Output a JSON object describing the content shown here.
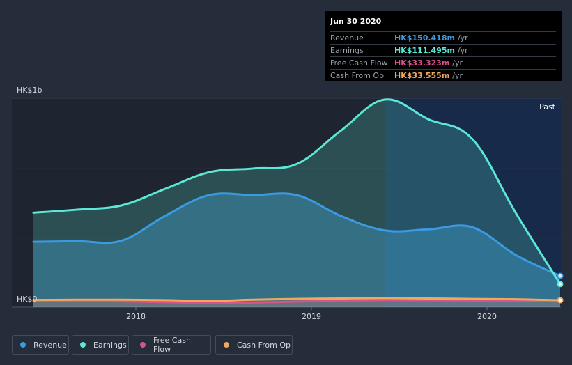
{
  "chart_data": {
    "type": "area",
    "y_axis": {
      "top_label": "HK$1b",
      "bottom_label": "HK$0",
      "ylim": [
        0,
        1000
      ]
    },
    "x_axis": {
      "ticks": [
        "2018",
        "2019",
        "2020"
      ],
      "range": [
        "2017-06",
        "2020-09"
      ]
    },
    "past_label": "Past",
    "x": [
      "2017-06",
      "2017-09",
      "2017-12",
      "2018-03",
      "2018-06",
      "2018-09",
      "2018-12",
      "2019-03",
      "2019-06",
      "2019-09",
      "2019-12",
      "2020-03",
      "2020-06"
    ],
    "series": [
      {
        "name": "Revenue",
        "color": "#3b9be2",
        "values": [
          315,
          318,
          320,
          440,
          540,
          540,
          540,
          440,
          370,
          375,
          385,
          250,
          150.418
        ]
      },
      {
        "name": "Earnings",
        "color": "#5be8d5",
        "values": [
          455,
          470,
          490,
          570,
          650,
          668,
          690,
          850,
          1000,
          905,
          810,
          450,
          111.495
        ]
      },
      {
        "name": "Free Cash Flow",
        "color": "#d9528a",
        "values": [
          28,
          29,
          28,
          24,
          20,
          22,
          27,
          31,
          34,
          33,
          32,
          31,
          33.323
        ]
      },
      {
        "name": "Cash From Op",
        "color": "#f0a95c",
        "values": [
          35,
          36,
          36,
          34,
          30,
          36,
          40,
          42,
          44,
          42,
          40,
          38,
          33.555
        ]
      }
    ]
  },
  "tooltip": {
    "date": "Jun 30 2020",
    "rows": [
      {
        "label": "Revenue",
        "value": "HK$150.418m",
        "unit": "/yr",
        "color": "#3b9be2"
      },
      {
        "label": "Earnings",
        "value": "HK$111.495m",
        "unit": "/yr",
        "color": "#5be8d5"
      },
      {
        "label": "Free Cash Flow",
        "value": "HK$33.323m",
        "unit": "/yr",
        "color": "#d9528a"
      },
      {
        "label": "Cash From Op",
        "value": "HK$33.555m",
        "unit": "/yr",
        "color": "#f0a95c"
      }
    ]
  },
  "legend": [
    {
      "label": "Revenue",
      "color": "#3b9be2"
    },
    {
      "label": "Earnings",
      "color": "#5be8d5"
    },
    {
      "label": "Free Cash Flow",
      "color": "#d9528a"
    },
    {
      "label": "Cash From Op",
      "color": "#f0a95c"
    }
  ]
}
